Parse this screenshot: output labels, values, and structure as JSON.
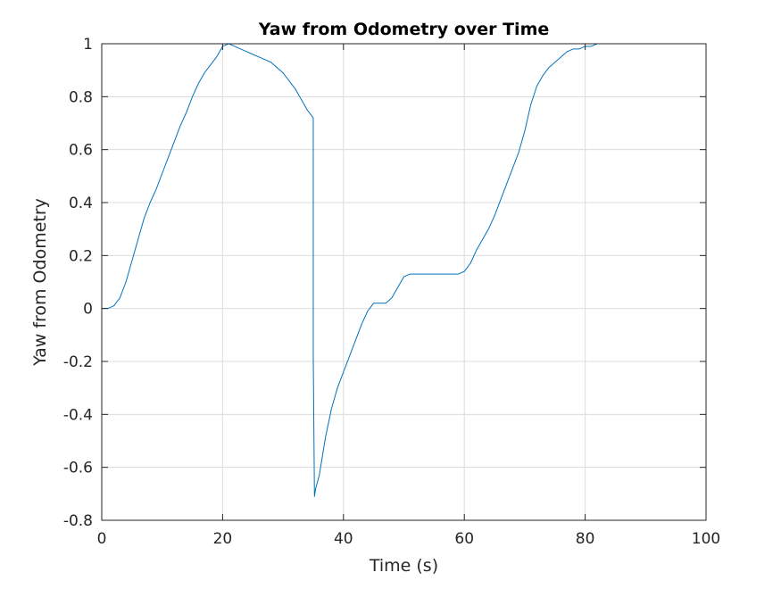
{
  "chart_data": {
    "type": "line",
    "title": "Yaw from Odometry over Time",
    "xlabel": "Time (s)",
    "ylabel": "Yaw from Odometry",
    "xlim": [
      0,
      100
    ],
    "ylim": [
      -0.8,
      1
    ],
    "xticks": [
      0,
      20,
      40,
      60,
      80,
      100
    ],
    "yticks": [
      -0.8,
      -0.6,
      -0.4,
      -0.2,
      0,
      0.2,
      0.4,
      0.6,
      0.8,
      1
    ],
    "grid": true,
    "line_color": "#0072bd",
    "series": [
      {
        "x": [
          0,
          1,
          2,
          3,
          4,
          5,
          6,
          7,
          8,
          9,
          10,
          11,
          12,
          13,
          14,
          15,
          16,
          17,
          18,
          19,
          20,
          21,
          22,
          23,
          24,
          25,
          26,
          27,
          28,
          29,
          30,
          31,
          32,
          33,
          34,
          35,
          35,
          35.2,
          35.4,
          36,
          37,
          38,
          39,
          40,
          41,
          42,
          43,
          44,
          45,
          46,
          47,
          48,
          49,
          50,
          51,
          52,
          53,
          54,
          55,
          56,
          57,
          58,
          59,
          60,
          61,
          62,
          63,
          64,
          65,
          66,
          67,
          68,
          69,
          70,
          71,
          72,
          73,
          74,
          75,
          76,
          77,
          78,
          79,
          80,
          81,
          82,
          83
        ],
        "y": [
          0.0,
          0.0,
          0.01,
          0.04,
          0.1,
          0.18,
          0.26,
          0.34,
          0.4,
          0.45,
          0.51,
          0.57,
          0.63,
          0.69,
          0.74,
          0.8,
          0.85,
          0.89,
          0.92,
          0.95,
          0.99,
          1.0,
          0.99,
          0.98,
          0.97,
          0.96,
          0.95,
          0.94,
          0.93,
          0.91,
          0.89,
          0.86,
          0.83,
          0.79,
          0.75,
          0.72,
          -0.17,
          -0.71,
          -0.68,
          -0.63,
          -0.49,
          -0.38,
          -0.3,
          -0.24,
          -0.18,
          -0.12,
          -0.06,
          -0.01,
          0.02,
          0.02,
          0.02,
          0.04,
          0.08,
          0.12,
          0.13,
          0.13,
          0.13,
          0.13,
          0.13,
          0.13,
          0.13,
          0.13,
          0.13,
          0.14,
          0.17,
          0.22,
          0.26,
          0.3,
          0.35,
          0.41,
          0.47,
          0.53,
          0.59,
          0.67,
          0.77,
          0.84,
          0.88,
          0.91,
          0.93,
          0.95,
          0.97,
          0.98,
          0.98,
          0.99,
          0.99,
          1.0,
          1.0
        ]
      }
    ]
  }
}
